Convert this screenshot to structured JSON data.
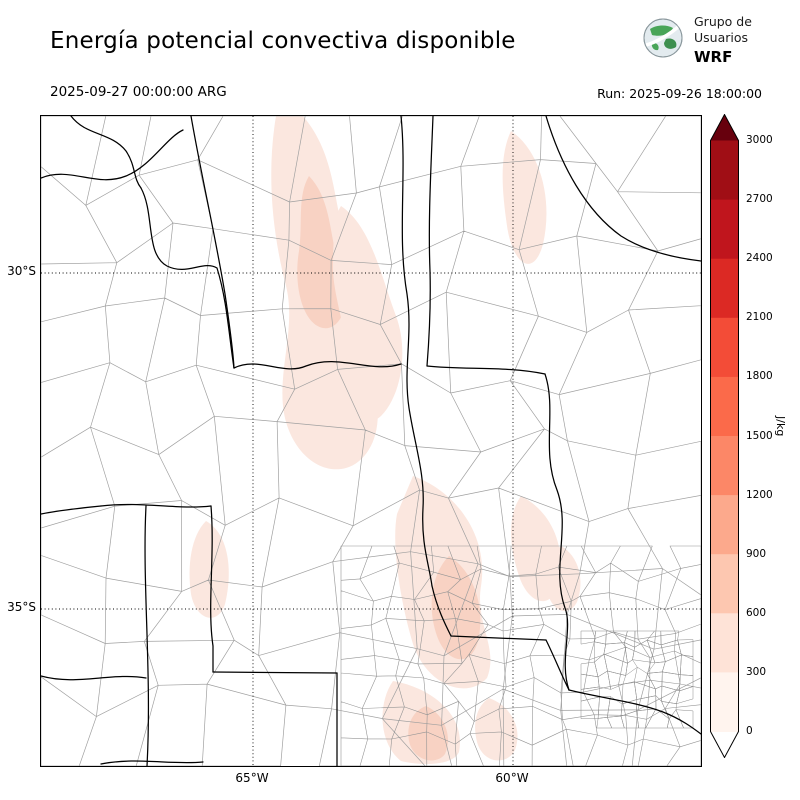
{
  "header": {
    "title": "Energía potencial convectiva disponible",
    "valid_time": "2025-09-27 00:00:00 ARG",
    "run_label": "Run: 2025-09-26 18:00:00",
    "logo": {
      "org_line1": "Grupo de",
      "org_line2": "Usuarios",
      "org_line3": "WRF"
    }
  },
  "map": {
    "lat_ticks": [
      "30°S",
      "35°S"
    ],
    "lon_ticks": [
      "65°W",
      "60°W"
    ],
    "land_color": "#ffffff",
    "province_boundary_color": "#000000",
    "department_boundary_color": "#a0a0a0",
    "shade_light": "#fbe7df",
    "shade_mid": "#f8d2c3",
    "shade_deep": "#f5c1ad"
  },
  "colorbar": {
    "label": "J/kg",
    "ticks_top_to_bottom": [
      "3000",
      "2700",
      "2400",
      "2100",
      "1800",
      "1500",
      "1200",
      "900",
      "600",
      "300",
      "0"
    ],
    "segment_colors_top_to_bottom": [
      "#a00e15",
      "#c0151d",
      "#dc2924",
      "#f34c37",
      "#fb6a4a",
      "#fc8767",
      "#fca98c",
      "#fdc7b0",
      "#fee3d7",
      "#fff4ee"
    ],
    "over_arrow_color": "#67000d",
    "under_arrow_color": "#ffffff"
  },
  "chart_data": {
    "type": "heatmap",
    "title": "Energía potencial convectiva disponible",
    "variable": "CAPE",
    "units": "J/kg",
    "valid_time": "2025-09-27 00:00:00 ARG",
    "model_run": "2025-09-26 18:00:00",
    "colorbar_levels": [
      0,
      300,
      600,
      900,
      1200,
      1500,
      1800,
      2100,
      2400,
      2700,
      3000
    ],
    "colorbar_extend": "both",
    "lat_gridlines_deg_s": [
      30,
      35
    ],
    "lon_gridlines_deg_w": [
      65,
      60
    ],
    "region": "central Argentina provinces with department boundaries",
    "field_summary": "Mostly near 0 J/kg; scattered light shading (~100–600 J/kg) over north-central, central and south-central areas of the domain"
  }
}
